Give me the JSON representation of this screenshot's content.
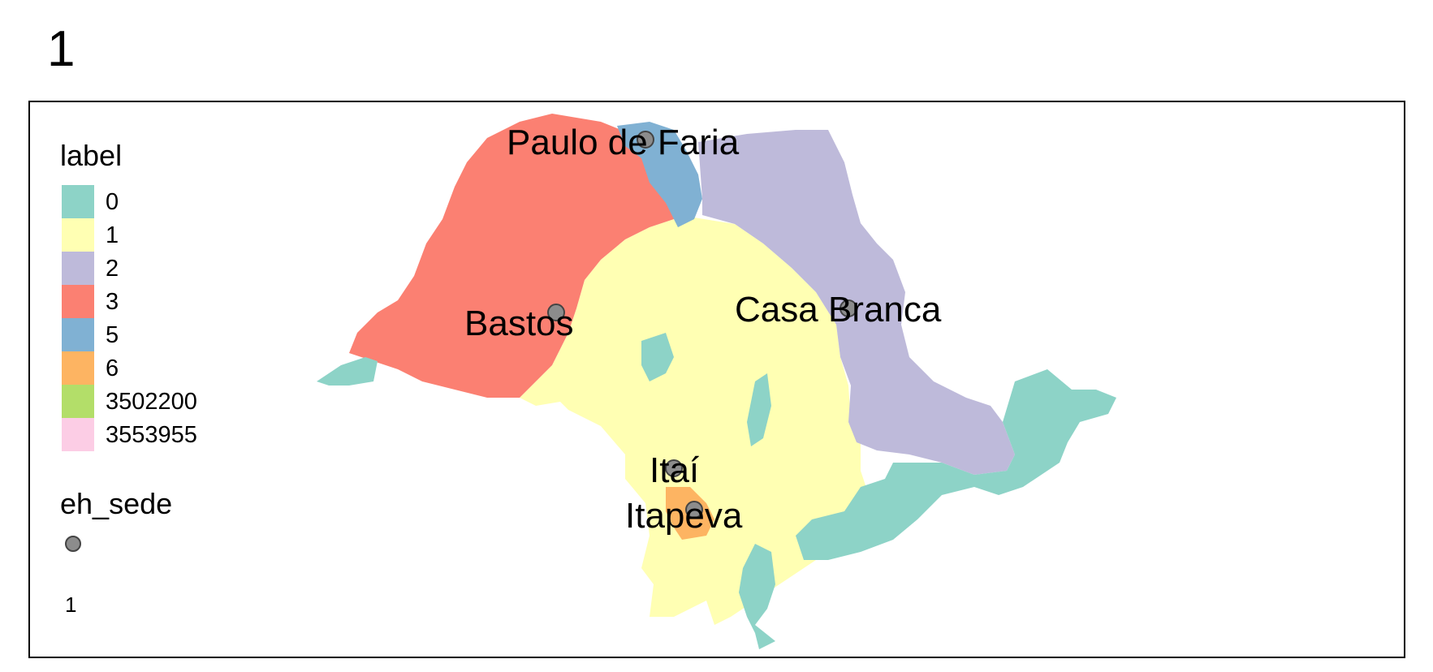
{
  "title": "1",
  "legend": {
    "title": "label",
    "items": [
      {
        "label": "0",
        "color": "#8dd3c7"
      },
      {
        "label": "1",
        "color": "#ffffb3"
      },
      {
        "label": "2",
        "color": "#bebada"
      },
      {
        "label": "3",
        "color": "#fb8072"
      },
      {
        "label": "5",
        "color": "#80b1d3"
      },
      {
        "label": "6",
        "color": "#fdb462"
      },
      {
        "label": "3502200",
        "color": "#b3de69"
      },
      {
        "label": "3553955",
        "color": "#fccde5"
      }
    ]
  },
  "sede_legend": {
    "title": "eh_sede",
    "value": "1",
    "marker_color": "#8c8c8c"
  },
  "cities": [
    "Paulo de Faria",
    "Bastos",
    "Casa Branca",
    "Itaí",
    "Itapeva"
  ]
}
